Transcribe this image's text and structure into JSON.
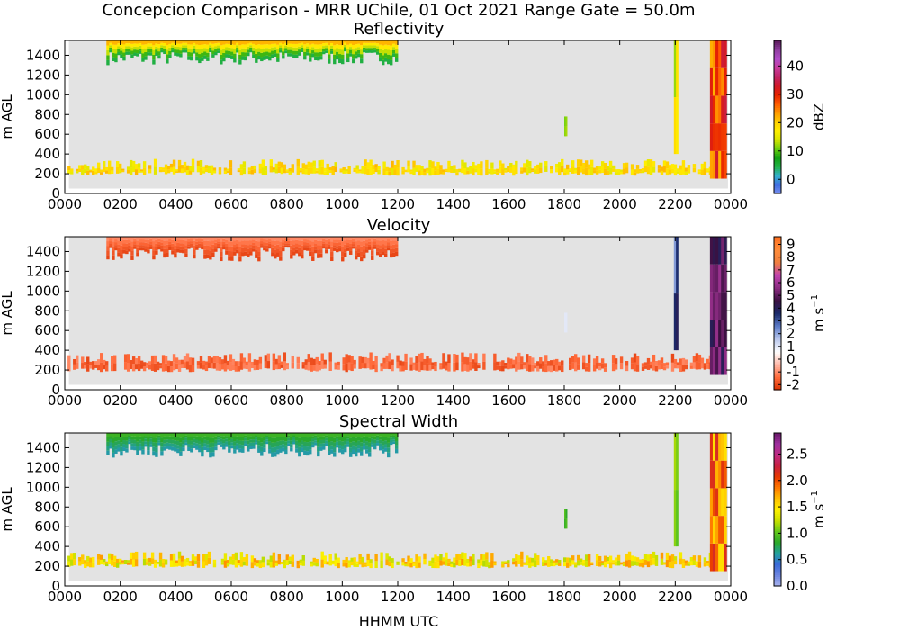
{
  "figure": {
    "title": "Concepcion Comparison - MRR UChile, 01 Oct 2021 Range Gate = 50.0m",
    "xlabel": "HHMM UTC"
  },
  "chart_data": [
    {
      "type": "heatmap",
      "title": "Reflectivity",
      "ylabel": "m AGL",
      "x_tick_labels": [
        "0000",
        "0200",
        "0400",
        "0600",
        "0800",
        "1000",
        "1200",
        "1400",
        "1600",
        "1800",
        "2000",
        "2200",
        "0000"
      ],
      "x_range_hours": [
        0,
        24
      ],
      "y_ticks": [
        0,
        200,
        400,
        600,
        800,
        1000,
        1200,
        1400
      ],
      "ylim": [
        0,
        1550
      ],
      "background_color": "#e3e3e3",
      "colorbar": {
        "label": "dBZ",
        "ticks": [
          "0",
          "10",
          "20",
          "30",
          "40"
        ],
        "range": [
          -5,
          49
        ],
        "tick_values": [
          0,
          10,
          20,
          30,
          40
        ],
        "colors": [
          "#7a8ef0",
          "#3f6fe0",
          "#33b0cc",
          "#22b24a",
          "#12a012",
          "#6ccf10",
          "#d6e400",
          "#ffee00",
          "#ffcf00",
          "#ff9a00",
          "#ff5a00",
          "#e62200",
          "#d11a2a",
          "#c02466",
          "#c83c9c",
          "#b04cc8",
          "#8f3fa0",
          "#5a1a5a"
        ],
        "unit_html": ""
      },
      "features": [
        {
          "name": "upper layer",
          "x_hours": [
            1.5,
            12.0
          ],
          "y_range": [
            1300,
            1550
          ],
          "values_dbz": [
            5,
            22
          ]
        },
        {
          "name": "near-surface band",
          "x_hours": [
            0.1,
            23.6
          ],
          "y_range": [
            180,
            350
          ],
          "values_dbz": [
            15,
            22
          ]
        },
        {
          "name": "isolated echo",
          "x_hours": [
            18.0,
            18.1
          ],
          "y_range": [
            580,
            780
          ],
          "values_dbz": [
            10,
            13
          ]
        },
        {
          "name": "column 2200",
          "x_hours": [
            21.95,
            22.1
          ],
          "y_range": [
            400,
            1550
          ],
          "values_dbz": [
            10,
            20
          ]
        },
        {
          "name": "precipitation after 2300",
          "x_hours": [
            23.25,
            23.85
          ],
          "y_range": [
            150,
            1550
          ],
          "values_dbz": [
            22,
            35
          ]
        }
      ]
    },
    {
      "type": "heatmap",
      "title": "Velocity",
      "ylabel": "m AGL",
      "x_tick_labels": [
        "0000",
        "0200",
        "0400",
        "0600",
        "0800",
        "1000",
        "1200",
        "1400",
        "1600",
        "1800",
        "2000",
        "2200",
        "0000"
      ],
      "x_range_hours": [
        0,
        24
      ],
      "y_ticks": [
        0,
        200,
        400,
        600,
        800,
        1000,
        1200,
        1400
      ],
      "ylim": [
        0,
        1550
      ],
      "background_color": "#e3e3e3",
      "colorbar": {
        "label": "m s",
        "ticks": [
          "-2",
          "-1",
          "0",
          "1",
          "2",
          "3",
          "4",
          "5",
          "6",
          "7",
          "8",
          "9"
        ],
        "range": [
          -2.4,
          9.6
        ],
        "tick_values": [
          -2,
          -1,
          0,
          1,
          2,
          3,
          4,
          5,
          6,
          7,
          8,
          9
        ],
        "colors": [
          "#d83000",
          "#ff6a3a",
          "#ffb8a8",
          "#ffffff",
          "#b8c6ec",
          "#5d7cc8",
          "#1a2a6a",
          "#3a1040",
          "#8a2a80",
          "#c044b0",
          "#f08040",
          "#ff8c3a",
          "#ff7020"
        ],
        "unit_html": "−1"
      },
      "features": [
        {
          "name": "upper layer",
          "x_hours": [
            1.5,
            12.0
          ],
          "y_range": [
            1300,
            1550
          ],
          "values_ms": [
            -2,
            -1
          ]
        },
        {
          "name": "near-surface band",
          "x_hours": [
            0.1,
            23.6
          ],
          "y_range": [
            180,
            380
          ],
          "values_ms": [
            -2,
            -1
          ]
        },
        {
          "name": "isolated echo",
          "x_hours": [
            18.0,
            18.1
          ],
          "y_range": [
            580,
            780
          ],
          "values_ms": [
            1,
            1
          ]
        },
        {
          "name": "column 2200",
          "x_hours": [
            21.95,
            22.1
          ],
          "y_range": [
            400,
            1550
          ],
          "values_ms": [
            2,
            4
          ]
        },
        {
          "name": "precipitation after 2300",
          "x_hours": [
            23.25,
            23.85
          ],
          "y_range": [
            150,
            1550
          ],
          "values_ms": [
            4,
            6
          ]
        }
      ]
    },
    {
      "type": "heatmap",
      "title": "Spectral Width",
      "ylabel": "m AGL",
      "x_tick_labels": [
        "0000",
        "0200",
        "0400",
        "0600",
        "0800",
        "1000",
        "1200",
        "1400",
        "1600",
        "1800",
        "2000",
        "2200",
        "0000"
      ],
      "x_range_hours": [
        0,
        24
      ],
      "y_ticks": [
        0,
        200,
        400,
        600,
        800,
        1000,
        1200,
        1400
      ],
      "ylim": [
        0,
        1550
      ],
      "background_color": "#e3e3e3",
      "colorbar": {
        "label": "m s",
        "ticks": [
          "0.0",
          "0.5",
          "1.0",
          "1.5",
          "2.0",
          "2.5"
        ],
        "range": [
          0,
          2.9
        ],
        "tick_values": [
          0.0,
          0.5,
          1.0,
          1.5,
          2.0,
          2.5
        ],
        "colors": [
          "#aab4ee",
          "#6e86e0",
          "#3a6ad8",
          "#22a0a0",
          "#2aa82a",
          "#62c81c",
          "#c8e000",
          "#fff000",
          "#ffc000",
          "#ff7a00",
          "#e83a00",
          "#c82040",
          "#c02a80",
          "#a030a0",
          "#6a1a6a"
        ],
        "unit_html": "−1"
      },
      "features": [
        {
          "name": "upper layer",
          "x_hours": [
            1.5,
            12.0
          ],
          "y_range": [
            1300,
            1550
          ],
          "values_ms": [
            0.6,
            0.9
          ]
        },
        {
          "name": "near-surface band",
          "x_hours": [
            0.1,
            23.6
          ],
          "y_range": [
            180,
            350
          ],
          "values_ms": [
            1.2,
            1.8
          ]
        },
        {
          "name": "isolated echo",
          "x_hours": [
            18.0,
            18.1
          ],
          "y_range": [
            580,
            780
          ],
          "values_ms": [
            0.8,
            1.0
          ]
        },
        {
          "name": "column 2200",
          "x_hours": [
            21.95,
            22.1
          ],
          "y_range": [
            400,
            1550
          ],
          "values_ms": [
            0.8,
            1.2
          ]
        },
        {
          "name": "precipitation after 2300",
          "x_hours": [
            23.25,
            23.85
          ],
          "y_range": [
            150,
            1550
          ],
          "values_ms": [
            1.5,
            2.2
          ]
        }
      ]
    }
  ]
}
